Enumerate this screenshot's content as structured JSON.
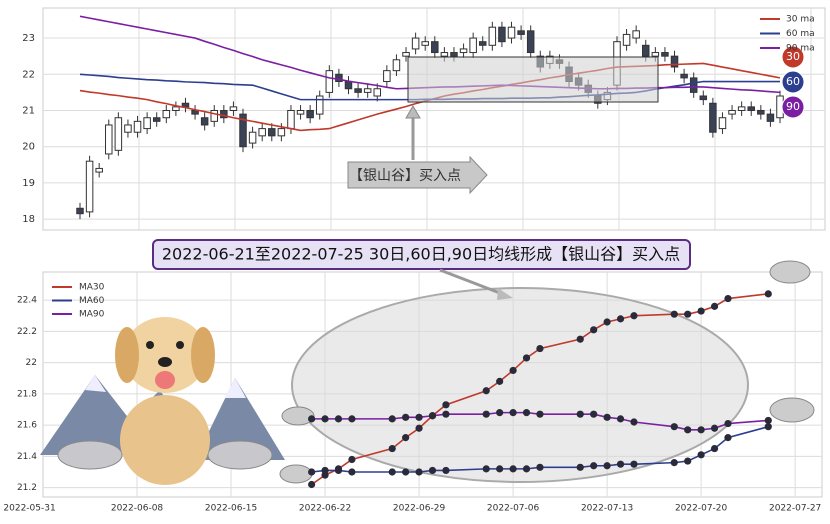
{
  "banner": "2022-06-21至2022-07-25 30日,60日,90日均线形成【银山谷】买入点",
  "chart_data": [
    {
      "type": "candlestick",
      "categories": [
        null,
        null,
        null,
        null,
        null,
        null,
        null,
        null,
        null,
        null,
        null,
        null,
        null,
        null,
        null,
        null,
        null,
        null,
        null,
        null,
        null,
        null,
        null,
        null,
        null,
        null,
        null,
        null,
        null,
        null,
        null,
        null,
        null,
        null,
        null,
        null,
        null,
        null,
        null,
        null,
        null,
        null,
        null,
        null,
        null,
        null,
        null,
        null,
        null,
        null,
        null,
        null,
        null,
        null,
        null,
        null,
        null,
        null,
        null,
        null,
        null,
        null,
        null,
        null,
        null,
        null,
        null,
        null,
        null,
        null,
        null,
        null,
        null,
        null
      ],
      "open": [
        18.3,
        18.2,
        19.3,
        19.8,
        19.9,
        20.4,
        20.4,
        20.5,
        20.8,
        20.8,
        21.0,
        21.2,
        21.0,
        20.8,
        20.7,
        21.0,
        21.0,
        20.9,
        20.1,
        20.3,
        20.5,
        20.3,
        20.5,
        20.9,
        21.0,
        20.9,
        21.5,
        22.0,
        21.8,
        21.6,
        21.5,
        21.4,
        21.8,
        22.1,
        22.5,
        22.7,
        22.8,
        22.9,
        22.5,
        22.6,
        22.6,
        22.6,
        22.9,
        22.8,
        23.3,
        23.0,
        23.2,
        23.2,
        22.5,
        22.3,
        22.4,
        22.2,
        21.9,
        21.7,
        21.4,
        21.3,
        21.7,
        22.8,
        23.0,
        22.8,
        22.5,
        22.6,
        22.5,
        22.0,
        21.9,
        21.4,
        21.2,
        20.5,
        20.9,
        21.0,
        21.1,
        21.0,
        20.9,
        20.8
      ],
      "high": [
        18.45,
        19.75,
        19.55,
        20.75,
        20.95,
        20.75,
        20.85,
        20.95,
        20.95,
        21.15,
        21.25,
        21.35,
        21.15,
        20.95,
        21.15,
        21.15,
        21.25,
        21.05,
        20.55,
        20.65,
        20.65,
        20.65,
        21.15,
        21.15,
        21.15,
        21.55,
        22.25,
        22.15,
        21.95,
        21.75,
        21.75,
        21.75,
        22.25,
        22.55,
        22.75,
        23.15,
        23.05,
        23.05,
        22.75,
        22.75,
        22.85,
        23.15,
        23.05,
        23.45,
        23.45,
        23.45,
        23.35,
        23.35,
        22.65,
        22.65,
        22.55,
        22.35,
        22.05,
        21.85,
        21.55,
        21.65,
        23.05,
        23.25,
        23.35,
        22.95,
        22.75,
        22.75,
        22.65,
        22.15,
        22.05,
        21.55,
        21.35,
        20.95,
        21.15,
        21.25,
        21.25,
        21.15,
        21.05,
        21.55
      ],
      "low": [
        18.0,
        18.05,
        19.15,
        19.65,
        19.75,
        20.25,
        20.25,
        20.35,
        20.55,
        20.65,
        20.85,
        20.95,
        20.75,
        20.45,
        20.55,
        20.65,
        20.85,
        19.85,
        19.95,
        20.15,
        20.15,
        20.15,
        20.35,
        20.75,
        20.65,
        20.75,
        21.35,
        21.65,
        21.45,
        21.35,
        21.35,
        21.25,
        21.65,
        21.95,
        22.35,
        22.55,
        22.65,
        22.45,
        22.35,
        22.35,
        22.45,
        22.45,
        22.65,
        22.65,
        22.75,
        22.85,
        22.95,
        22.45,
        22.05,
        22.15,
        22.15,
        21.65,
        21.55,
        21.35,
        21.05,
        21.15,
        21.55,
        22.65,
        22.85,
        22.35,
        22.35,
        22.35,
        22.05,
        21.75,
        21.35,
        21.15,
        20.25,
        20.35,
        20.75,
        20.85,
        20.85,
        20.75,
        20.55,
        20.65
      ],
      "close": [
        18.15,
        19.6,
        19.4,
        20.6,
        20.8,
        20.6,
        20.7,
        20.8,
        20.7,
        21.0,
        21.1,
        21.1,
        20.9,
        20.6,
        21.0,
        20.8,
        21.1,
        20.0,
        20.4,
        20.5,
        20.3,
        20.5,
        21.0,
        21.0,
        20.8,
        21.4,
        22.1,
        21.8,
        21.6,
        21.5,
        21.6,
        21.6,
        22.1,
        22.4,
        22.6,
        23.0,
        22.9,
        22.6,
        22.6,
        22.5,
        22.7,
        23.0,
        22.8,
        23.3,
        22.9,
        23.3,
        23.1,
        22.6,
        22.2,
        22.5,
        22.3,
        21.8,
        21.7,
        21.5,
        21.2,
        21.5,
        22.9,
        23.1,
        23.2,
        22.5,
        22.6,
        22.5,
        22.2,
        21.9,
        21.5,
        21.3,
        20.4,
        20.8,
        21.0,
        21.1,
        21.0,
        20.9,
        20.7,
        21.4
      ],
      "up_color": "#ffffff",
      "down_color": "#3a4256",
      "series": [
        {
          "name": "30 ma",
          "color": "#c0392b",
          "values": [
            21.55,
            21.51,
            21.48,
            21.44,
            21.41,
            21.37,
            21.34,
            21.3,
            21.24,
            21.19,
            21.13,
            21.08,
            21.02,
            20.97,
            20.91,
            20.86,
            20.8,
            20.75,
            20.7,
            20.65,
            20.6,
            20.55,
            20.5,
            20.45,
            20.47,
            20.48,
            20.5,
            20.58,
            20.66,
            20.74,
            20.82,
            20.9,
            20.97,
            21.04,
            21.11,
            21.19,
            21.26,
            21.33,
            21.4,
            21.45,
            21.49,
            21.54,
            21.58,
            21.63,
            21.67,
            21.72,
            21.76,
            21.81,
            21.85,
            21.9,
            21.94,
            21.99,
            22.03,
            22.07,
            22.11,
            22.16,
            22.2,
            22.21,
            22.22,
            22.23,
            22.24,
            22.26,
            22.27,
            22.28,
            22.29,
            22.3,
            22.25,
            22.2,
            22.15,
            22.1,
            22.05,
            22.0,
            21.95,
            21.9
          ]
        },
        {
          "name": "60 ma",
          "color": "#2c3e90",
          "values": [
            22.0,
            21.98,
            21.96,
            21.94,
            21.91,
            21.89,
            21.87,
            21.85,
            21.84,
            21.82,
            21.81,
            21.79,
            21.78,
            21.77,
            21.75,
            21.74,
            21.72,
            21.71,
            21.7,
            21.62,
            21.54,
            21.46,
            21.38,
            21.3,
            21.3,
            21.3,
            21.3,
            21.3,
            21.3,
            21.3,
            21.3,
            21.3,
            21.3,
            21.3,
            21.3,
            21.3,
            21.31,
            21.31,
            21.31,
            21.32,
            21.32,
            21.32,
            21.33,
            21.33,
            21.33,
            21.34,
            21.34,
            21.34,
            21.35,
            21.35,
            21.37,
            21.38,
            21.4,
            21.42,
            21.43,
            21.45,
            21.47,
            21.48,
            21.5,
            21.54,
            21.59,
            21.63,
            21.67,
            21.71,
            21.76,
            21.8,
            21.8,
            21.8,
            21.8,
            21.8,
            21.8,
            21.8,
            21.8,
            21.8
          ]
        },
        {
          "name": "90 ma",
          "color": "#7b1fa2",
          "values": [
            23.6,
            23.55,
            23.5,
            23.45,
            23.4,
            23.35,
            23.3,
            23.25,
            23.2,
            23.15,
            23.1,
            23.05,
            23.0,
            22.91,
            22.83,
            22.74,
            22.66,
            22.57,
            22.49,
            22.4,
            22.33,
            22.26,
            22.19,
            22.11,
            22.04,
            21.97,
            21.9,
            21.86,
            21.81,
            21.77,
            21.73,
            21.69,
            21.64,
            21.6,
            21.61,
            21.62,
            21.63,
            21.64,
            21.65,
            21.65,
            21.66,
            21.67,
            21.68,
            21.69,
            21.7,
            21.69,
            21.68,
            21.67,
            21.66,
            21.65,
            21.64,
            21.63,
            21.62,
            21.61,
            21.6,
            21.6,
            21.61,
            21.61,
            21.62,
            21.62,
            21.63,
            21.63,
            21.64,
            21.64,
            21.65,
            21.65,
            21.63,
            21.61,
            21.59,
            21.57,
            21.56,
            21.54,
            21.52,
            21.5
          ]
        }
      ],
      "ylim": [
        17.7,
        23.83
      ],
      "yticks": [
        18,
        19,
        20,
        21,
        22,
        23
      ],
      "grid": true,
      "legend": "upper right",
      "annotation": "【银山谷】买入点",
      "badges": [
        30,
        60,
        90
      ]
    },
    {
      "type": "line",
      "x": [
        "2022-06-21",
        "2022-06-22",
        "2022-06-23",
        "2022-06-24",
        "2022-06-27",
        "2022-06-28",
        "2022-06-29",
        "2022-06-30",
        "2022-07-01",
        "2022-07-04",
        "2022-07-05",
        "2022-07-06",
        "2022-07-07",
        "2022-07-08",
        "2022-07-11",
        "2022-07-12",
        "2022-07-13",
        "2022-07-14",
        "2022-07-15",
        "2022-07-18",
        "2022-07-19",
        "2022-07-20",
        "2022-07-21",
        "2022-07-22",
        "2022-07-25"
      ],
      "series": [
        {
          "name": "MA30",
          "color": "#c0392b",
          "values": [
            21.22,
            21.28,
            21.32,
            21.38,
            21.45,
            21.52,
            21.58,
            21.66,
            21.73,
            21.82,
            21.88,
            21.95,
            22.03,
            22.09,
            22.15,
            22.21,
            22.26,
            22.28,
            22.3,
            22.31,
            22.31,
            22.33,
            22.36,
            22.41,
            22.44
          ]
        },
        {
          "name": "MA60",
          "color": "#2c3e90",
          "values": [
            21.3,
            21.31,
            21.31,
            21.3,
            21.3,
            21.3,
            21.3,
            21.31,
            21.31,
            21.32,
            21.32,
            21.32,
            21.32,
            21.33,
            21.33,
            21.34,
            21.34,
            21.35,
            21.35,
            21.36,
            21.37,
            21.41,
            21.45,
            21.52,
            21.59
          ]
        },
        {
          "name": "MA90",
          "color": "#7b1fa2",
          "values": [
            21.64,
            21.64,
            21.64,
            21.64,
            21.64,
            21.65,
            21.65,
            21.66,
            21.67,
            21.67,
            21.68,
            21.68,
            21.68,
            21.67,
            21.67,
            21.67,
            21.65,
            21.64,
            21.62,
            21.59,
            21.57,
            21.57,
            21.58,
            21.61,
            21.63
          ]
        }
      ],
      "marker_color": "#2a2a3a",
      "xlim": [
        "2022-06-01",
        "2022-07-29"
      ],
      "xticks": [
        "2022-05-31",
        "2022-06-08",
        "2022-06-15",
        "2022-06-22",
        "2022-06-29",
        "2022-07-06",
        "2022-07-13",
        "2022-07-20",
        "2022-07-27"
      ],
      "ylim": [
        21.14,
        22.58
      ],
      "yticks": [
        21.2,
        21.4,
        21.6,
        21.8,
        22.0,
        22.2,
        22.4
      ],
      "grid": true,
      "legend": "upper left"
    }
  ]
}
